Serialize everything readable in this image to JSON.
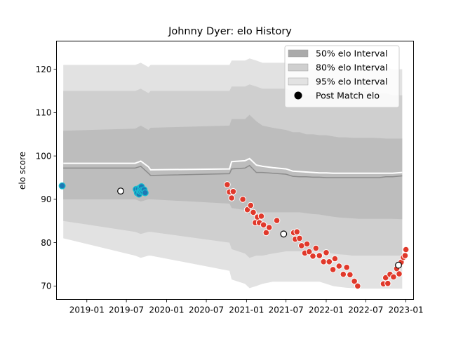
{
  "chart_data": {
    "type": "scatter",
    "title": "Johnny Dyer: elo History",
    "xlabel": "",
    "ylabel": "elo score",
    "xlim": [
      "2018-08-15",
      "2023-02-05"
    ],
    "ylim": [
      66.9,
      126.5
    ],
    "grid": false,
    "legend_position": "top-right",
    "x_ticks": [
      "2019-01",
      "2019-07",
      "2020-01",
      "2020-07",
      "2021-01",
      "2021-07",
      "2022-01",
      "2022-07",
      "2023-01"
    ],
    "y_ticks": [
      70,
      80,
      90,
      100,
      110,
      120
    ],
    "legend": [
      {
        "label": "50% elo Interval",
        "swatch": "band50"
      },
      {
        "label": "80% elo Interval",
        "swatch": "band80"
      },
      {
        "label": "95% elo Interval",
        "swatch": "band95"
      },
      {
        "label": "Post Match elo",
        "swatch": "marker"
      }
    ],
    "colors": {
      "band95": "#e2e2e2",
      "band80": "#cfcfcf",
      "band50": "#bdbdbd",
      "mean_line": "#ffffff",
      "median_line": "#8c8c8c",
      "blue_points": "#1f77b4",
      "blue_edge": "#17becf",
      "red_points": "#e0392b",
      "white_points": "#ffffff"
    },
    "interval_bands": {
      "x": [
        "2018-09-15",
        "2019-08-10",
        "2019-09-05",
        "2019-10-10",
        "2019-10-20",
        "2020-10-15",
        "2020-10-25",
        "2020-12-25",
        "2021-01-15",
        "2021-02-15",
        "2021-03-15",
        "2021-05-01",
        "2021-07-01",
        "2021-08-01",
        "2021-09-01",
        "2021-10-01",
        "2021-11-01",
        "2021-12-01",
        "2022-01-01",
        "2022-02-01",
        "2022-03-01",
        "2022-04-01",
        "2022-05-01",
        "2022-06-01",
        "2022-07-01",
        "2022-08-01",
        "2022-09-01",
        "2022-10-01",
        "2022-11-01",
        "2022-12-15"
      ],
      "p95_hi": [
        121.0,
        121.0,
        121.5,
        120.5,
        121.0,
        121.0,
        122.0,
        122.0,
        122.5,
        122.0,
        121.5,
        121.5,
        121.5,
        121.0,
        120.5,
        120.0,
        120.0,
        120.0,
        120.5,
        121.0,
        121.0,
        121.0,
        121.0,
        121.0,
        121.0,
        121.0,
        120.5,
        120.5,
        120.0,
        120.0
      ],
      "p80_hi": [
        115.0,
        115.0,
        115.5,
        114.5,
        115.0,
        115.0,
        116.0,
        116.0,
        116.5,
        116.0,
        115.5,
        115.5,
        115.5,
        115.0,
        114.5,
        114.0,
        114.0,
        114.0,
        114.5,
        115.0,
        115.0,
        115.0,
        115.0,
        115.0,
        115.0,
        115.0,
        114.5,
        114.5,
        114.0,
        114.0
      ],
      "p50_hi": [
        105.8,
        106.3,
        107.0,
        106.0,
        106.5,
        107.0,
        108.5,
        108.5,
        109.5,
        108.0,
        107.0,
        106.5,
        106.0,
        105.5,
        105.5,
        105.0,
        105.0,
        104.8,
        104.8,
        104.5,
        104.3,
        104.3,
        104.2,
        104.2,
        104.2,
        104.2,
        104.1,
        104.0,
        104.0,
        104.0
      ],
      "p50_lo": [
        90.0,
        90.0,
        89.5,
        90.0,
        90.0,
        89.0,
        88.0,
        87.5,
        86.5,
        87.0,
        87.0,
        87.0,
        87.0,
        87.0,
        87.0,
        86.8,
        86.6,
        86.5,
        86.2,
        86.0,
        85.8,
        85.7,
        85.6,
        85.5,
        85.5,
        85.5,
        85.5,
        85.5,
        85.5,
        85.4
      ],
      "p80_lo": [
        85.0,
        82.5,
        82.0,
        82.5,
        82.5,
        80.0,
        78.5,
        77.5,
        76.5,
        77.0,
        77.0,
        77.5,
        78.0,
        78.0,
        78.0,
        78.0,
        78.0,
        78.0,
        77.8,
        77.5,
        77.3,
        77.2,
        77.0,
        77.0,
        77.0,
        77.0,
        77.0,
        77.0,
        77.0,
        77.0
      ],
      "p95_lo": [
        81.0,
        77.0,
        76.5,
        77.0,
        77.0,
        73.5,
        71.5,
        70.5,
        69.5,
        70.0,
        70.5,
        71.0,
        71.0,
        71.0,
        71.0,
        71.0,
        71.0,
        71.0,
        70.5,
        70.0,
        69.8,
        69.6,
        69.5,
        69.4,
        69.4,
        69.4,
        69.4,
        69.4,
        69.4,
        69.4
      ]
    },
    "mean_line": {
      "x": [
        "2018-09-15",
        "2019-08-10",
        "2019-09-05",
        "2019-10-10",
        "2019-10-20",
        "2020-10-15",
        "2020-10-25",
        "2020-12-25",
        "2021-01-15",
        "2021-02-15",
        "2021-03-15",
        "2021-05-01",
        "2021-07-01",
        "2021-08-01",
        "2021-09-01",
        "2021-10-01",
        "2021-11-01",
        "2021-12-01",
        "2022-01-01",
        "2022-02-01",
        "2022-03-01",
        "2022-04-01",
        "2022-05-01",
        "2022-06-01",
        "2022-07-01",
        "2022-08-01",
        "2022-09-01",
        "2022-10-01",
        "2022-11-01",
        "2022-12-15"
      ],
      "y": [
        98.3,
        98.3,
        98.8,
        97.5,
        96.8,
        97.0,
        98.7,
        98.9,
        99.4,
        97.9,
        97.6,
        97.3,
        97.0,
        96.5,
        96.4,
        96.3,
        96.2,
        96.1,
        96.1,
        96.0,
        96.0,
        96.0,
        96.0,
        96.0,
        96.0,
        96.0,
        96.0,
        96.0,
        96.0,
        96.2
      ]
    },
    "median_line": {
      "x": [
        "2018-09-15",
        "2019-08-10",
        "2019-09-05",
        "2019-10-10",
        "2019-10-20",
        "2020-10-15",
        "2020-10-25",
        "2020-12-25",
        "2021-01-15",
        "2021-02-15",
        "2021-03-15",
        "2021-05-01",
        "2021-07-01",
        "2021-08-01",
        "2021-09-01",
        "2021-10-01",
        "2021-11-01",
        "2021-12-01",
        "2022-01-01",
        "2022-02-01",
        "2022-03-01",
        "2022-04-01",
        "2022-05-01",
        "2022-06-01",
        "2022-07-01",
        "2022-08-01",
        "2022-09-01",
        "2022-10-01",
        "2022-11-01",
        "2022-12-15"
      ],
      "y": [
        97.2,
        97.2,
        97.6,
        96.0,
        95.5,
        95.9,
        97.0,
        97.2,
        97.8,
        96.2,
        96.2,
        96.0,
        95.8,
        95.3,
        95.2,
        95.2,
        95.1,
        95.1,
        95.0,
        95.0,
        95.0,
        95.0,
        95.0,
        95.0,
        95.0,
        95.0,
        95.0,
        95.2,
        95.2,
        95.4
      ]
    },
    "series": [
      {
        "color": "#1f77b4",
        "x": [
          "2018-09-10",
          "2019-08-15",
          "2019-08-20",
          "2019-08-25",
          "2019-08-28",
          "2019-09-01",
          "2019-09-03",
          "2019-09-05",
          "2019-09-08",
          "2019-09-10",
          "2019-09-15",
          "2019-09-20",
          "2019-09-25"
        ],
        "y": [
          93.1,
          92.3,
          91.5,
          92.4,
          91.2,
          91.9,
          92.7,
          91.8,
          92.9,
          92.0,
          91.8,
          92.2,
          91.5
        ]
      },
      {
        "color": "#e0392b",
        "x": [
          "2020-10-05",
          "2020-10-15",
          "2020-10-25",
          "2020-11-01",
          "2020-12-15",
          "2021-01-05",
          "2021-01-20",
          "2021-02-01",
          "2021-02-10",
          "2021-02-20",
          "2021-03-01",
          "2021-03-10",
          "2021-03-20",
          "2021-04-01",
          "2021-04-15",
          "2021-05-20",
          "2021-08-05",
          "2021-08-12",
          "2021-08-20",
          "2021-09-01",
          "2021-09-10",
          "2021-09-25",
          "2021-10-05",
          "2021-10-15",
          "2021-11-01",
          "2021-11-15",
          "2021-12-01",
          "2021-12-20",
          "2022-01-01",
          "2022-01-15",
          "2022-02-01",
          "2022-02-10",
          "2022-03-01",
          "2022-03-20",
          "2022-04-05",
          "2022-04-20",
          "2022-05-10",
          "2022-05-25",
          "2022-09-20",
          "2022-09-30",
          "2022-10-10",
          "2022-10-20",
          "2022-11-05",
          "2022-11-20",
          "2022-12-01",
          "2022-12-10",
          "2022-12-20",
          "2022-12-28",
          "2023-01-01"
        ],
        "y": [
          93.4,
          91.7,
          90.3,
          91.8,
          90.0,
          87.6,
          88.6,
          87.0,
          84.6,
          85.9,
          84.6,
          86.1,
          84.1,
          82.3,
          83.5,
          85.1,
          82.3,
          80.8,
          82.5,
          81.0,
          79.3,
          77.6,
          79.7,
          77.9,
          76.9,
          78.7,
          77.0,
          75.6,
          77.7,
          75.6,
          73.8,
          76.3,
          74.6,
          72.7,
          74.3,
          72.6,
          71.1,
          70.0,
          70.5,
          71.9,
          70.6,
          72.7,
          72.1,
          74.0,
          72.8,
          75.5,
          76.6,
          77.0,
          78.4
        ]
      },
      {
        "color": "#ffffff",
        "x": [
          "2019-06-05",
          "2021-06-20",
          "2022-11-28"
        ],
        "y": [
          91.9,
          82.0,
          74.8
        ]
      }
    ]
  }
}
